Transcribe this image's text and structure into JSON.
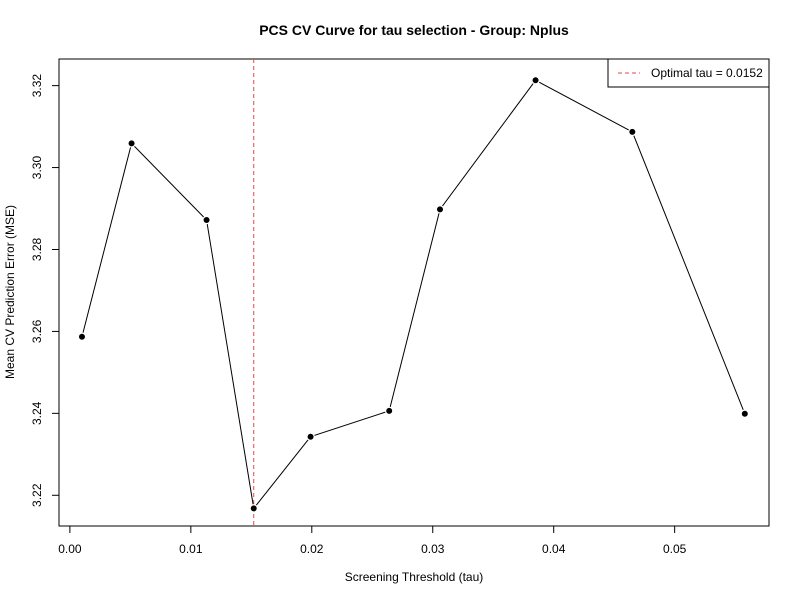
{
  "chart_data": {
    "type": "line",
    "title": "PCS CV Curve for tau selection - Group: Nplus",
    "xlabel": "Screening Threshold (tau)",
    "ylabel": "Mean CV Prediction Error (MSE)",
    "xlim": [
      -0.0009,
      0.0578
    ],
    "ylim": [
      3.2125,
      3.3265
    ],
    "xticks": [
      0.0,
      0.01,
      0.02,
      0.03,
      0.04,
      0.05
    ],
    "xtick_labels": [
      "0.00",
      "0.01",
      "0.02",
      "0.03",
      "0.04",
      "0.05"
    ],
    "yticks": [
      3.22,
      3.24,
      3.26,
      3.28,
      3.3,
      3.32
    ],
    "ytick_labels": [
      "3.22",
      "3.24",
      "3.26",
      "3.28",
      "3.30",
      "3.32"
    ],
    "grid": false,
    "series": [
      {
        "color": "#000000",
        "marker": "filled-circle",
        "x": [
          0.001,
          0.0051,
          0.0113,
          0.0152,
          0.0199,
          0.0264,
          0.0306,
          0.0385,
          0.0465,
          0.0558
        ],
        "y": [
          3.2587,
          3.3059,
          3.2872,
          3.2168,
          3.2343,
          3.2406,
          3.2898,
          3.3213,
          3.3087,
          3.2399
        ]
      }
    ],
    "vline": {
      "x": 0.0152,
      "color": "#e8474a",
      "style": "dashed"
    },
    "legend": {
      "position": "top-right",
      "entries": [
        {
          "label": "Optimal tau = 0.0152",
          "color": "#e8474a",
          "style": "dashed"
        }
      ]
    }
  }
}
